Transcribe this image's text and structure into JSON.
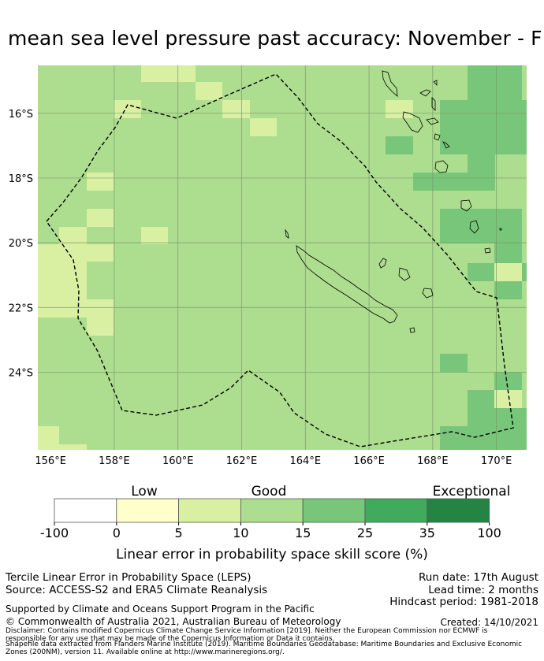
{
  "title": "mean sea level pressure past accuracy: November - F",
  "map": {
    "lat_labels": [
      "16°S",
      "18°S",
      "20°S",
      "22°S",
      "24°S"
    ],
    "lon_labels": [
      "156°E",
      "158°E",
      "160°E",
      "162°E",
      "164°E",
      "166°E",
      "168°E",
      "170°E"
    ],
    "colors": {
      "level1": "#ffffcc",
      "level2": "#d9f0a3",
      "level3": "#addd8e",
      "level4": "#78c679",
      "level5": "#41ab5d",
      "level6": "#238443"
    }
  },
  "legend": {
    "category_labels": [
      "Low",
      "Good",
      "Exceptional"
    ],
    "tick_labels": [
      "-100",
      "0",
      "5",
      "10",
      "15",
      "25",
      "35",
      "100"
    ],
    "colors": [
      "#ffffff",
      "#ffffcc",
      "#d9f0a3",
      "#addd8e",
      "#78c679",
      "#41ab5d",
      "#238443"
    ],
    "axis_label": "Linear error in probability space skill score (%)"
  },
  "footer": {
    "left_line1": "Tercile Linear Error in Probability Space (LEPS)",
    "left_line2": "Source: ACCESS-S2 and ERA5 Climate Reanalysis",
    "right_line1": "Run date: 17th August",
    "right_line2": "Lead time: 2 months",
    "right_line3": "Hindcast period: 1981-2018",
    "supported": "Supported by Climate and Oceans Support Program in the Pacific",
    "copyright": "© Commonwealth of Australia 2021, Australian Bureau of Meteorology",
    "created": "Created: 14/10/2021",
    "disclaimer1": "Disclaimer: Contains modified Copernicus Climate Change Service Information [2019]. Neither the European Commission nor ECMWF is",
    "disclaimer2": "responsible for any use that may be made of the Copernicus Information or Data it contains.",
    "disclaimer3": "Shapefile data extracted from Flanders Marine Institute (2019). Maritime Boundaries Geodatabase: Maritime Boundaries and Exclusive Economic",
    "disclaimer4": "Zones (200NM), version 11. Available online at http://www.marineregions.org/."
  }
}
